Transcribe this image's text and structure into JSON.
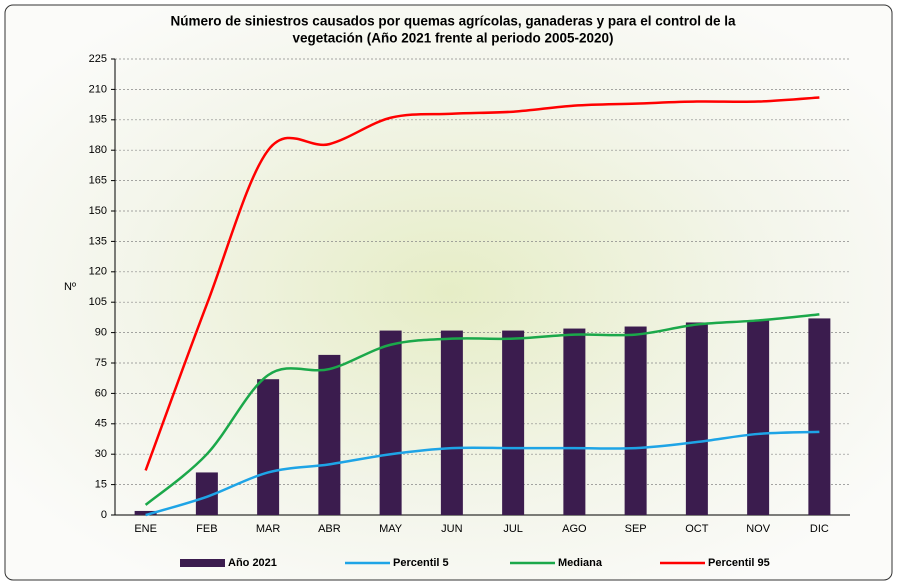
{
  "chart_data": {
    "type": "bar_line",
    "title": [
      "Número de siniestros causados por quemas agrícolas, ganaderas  y  para  el control de la",
      "vegetación  (Año 2021 frente al periodo 2005-2020)"
    ],
    "y_label": "Nº",
    "categories": [
      "ENE",
      "FEB",
      "MAR",
      "ABR",
      "MAY",
      "JUN",
      "JUL",
      "AGO",
      "SEP",
      "OCT",
      "NOV",
      "DIC"
    ],
    "series": [
      {
        "name": "Año 2021",
        "type": "bar",
        "color": "#3b1c4e",
        "values": [
          2,
          21,
          67,
          79,
          91,
          91,
          91,
          92,
          93,
          95,
          96,
          97
        ]
      },
      {
        "name": "Percentil 5",
        "type": "line",
        "color": "#1ea4e6",
        "values": [
          0,
          9,
          21,
          25,
          30,
          33,
          33,
          33,
          33,
          36,
          40,
          41
        ]
      },
      {
        "name": "Mediana",
        "type": "line",
        "color": "#1ba84a",
        "values": [
          5,
          30,
          69,
          72,
          84,
          87,
          87,
          89,
          89,
          94,
          96,
          99
        ]
      },
      {
        "name": "Percentil 95",
        "type": "line",
        "color": "#ff0000",
        "values": [
          22,
          104,
          180,
          183,
          196,
          198,
          199,
          202,
          203,
          204,
          204,
          206
        ]
      }
    ],
    "ylim": [
      0,
      225
    ],
    "yticks": [
      0,
      15,
      30,
      45,
      60,
      75,
      90,
      105,
      120,
      135,
      150,
      165,
      180,
      195,
      210,
      225
    ],
    "grid": true,
    "legend": "bottom"
  }
}
